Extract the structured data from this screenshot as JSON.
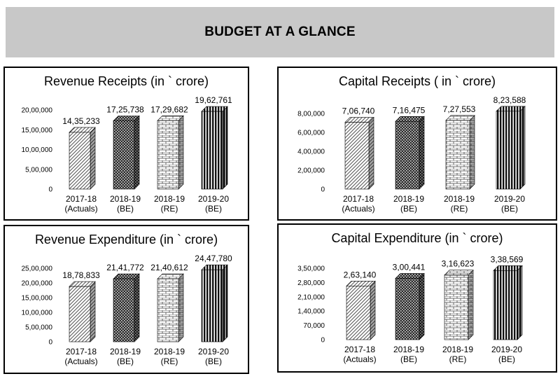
{
  "page": {
    "title": "BUDGET AT A GLANCE"
  },
  "patterns": [
    "diag",
    "scale",
    "brick",
    "vstripe"
  ],
  "colors": {
    "banner": "#c8c8c8",
    "bar_dark": "#111111",
    "bar_light": "#ffffff",
    "frame": "#000000"
  },
  "chart_data": [
    {
      "type": "bar",
      "title": "Revenue Receipts (in ` crore)",
      "categories": [
        [
          "2017-18",
          "(Actuals)"
        ],
        [
          "2018-19",
          "(BE)"
        ],
        [
          "2018-19",
          "(RE)"
        ],
        [
          "2019-20",
          "(BE)"
        ]
      ],
      "values": [
        1435233,
        1725738,
        1729682,
        1962761
      ],
      "value_labels": [
        "14,35,233",
        "17,25,738",
        "17,29,682",
        "19,62,761"
      ],
      "yticks": [
        "0",
        "5,00,000",
        "10,00,000",
        "15,00,000",
        "20,00,000"
      ],
      "ylim": [
        0,
        2000000
      ],
      "grid": false
    },
    {
      "type": "bar",
      "title": "Capital Receipts ( in ` crore)",
      "categories": [
        [
          "2017-18",
          "(Actuals)"
        ],
        [
          "2018-19",
          "(BE)"
        ],
        [
          "2018-19",
          "(RE)"
        ],
        [
          "2019-20",
          "(BE)"
        ]
      ],
      "values": [
        706740,
        716475,
        727553,
        823588
      ],
      "value_labels": [
        "7,06,740",
        "7,16,475",
        "7,27,553",
        "8,23,588"
      ],
      "yticks": [
        "0",
        "2,00,000",
        "4,00,000",
        "6,00,000",
        "8,00,000"
      ],
      "ylim": [
        0,
        800000
      ],
      "grid": false
    },
    {
      "type": "bar",
      "title": "Revenue Expenditure (in ` crore)",
      "categories": [
        [
          "2017-18",
          "(Actuals)"
        ],
        [
          "2018-19",
          "(BE)"
        ],
        [
          "2018-19",
          "(RE)"
        ],
        [
          "2019-20",
          "(BE)"
        ]
      ],
      "values": [
        1878833,
        2141772,
        2140612,
        2447780
      ],
      "value_labels": [
        "18,78,833",
        "21,41,772",
        "21,40,612",
        "24,47,780"
      ],
      "yticks": [
        "0",
        "5,00,000",
        "10,00,000",
        "15,00,000",
        "20,00,000",
        "25,00,000"
      ],
      "ylim": [
        0,
        2500000
      ],
      "grid": false
    },
    {
      "type": "bar",
      "title": "Capital Expenditure (in ` crore)",
      "categories": [
        [
          "2017-18",
          "(Actuals)"
        ],
        [
          "2018-19",
          "(BE)"
        ],
        [
          "2018-19",
          "(RE)"
        ],
        [
          "2019-20",
          "(BE)"
        ]
      ],
      "values": [
        263140,
        300441,
        316623,
        338569
      ],
      "value_labels": [
        "2,63,140",
        "3,00,441",
        "3,16,623",
        "3,38,569"
      ],
      "yticks": [
        "0",
        "70,000",
        "1,40,000",
        "2,10,000",
        "2,80,000",
        "3,50,000"
      ],
      "ylim": [
        0,
        350000
      ],
      "grid": false
    }
  ]
}
